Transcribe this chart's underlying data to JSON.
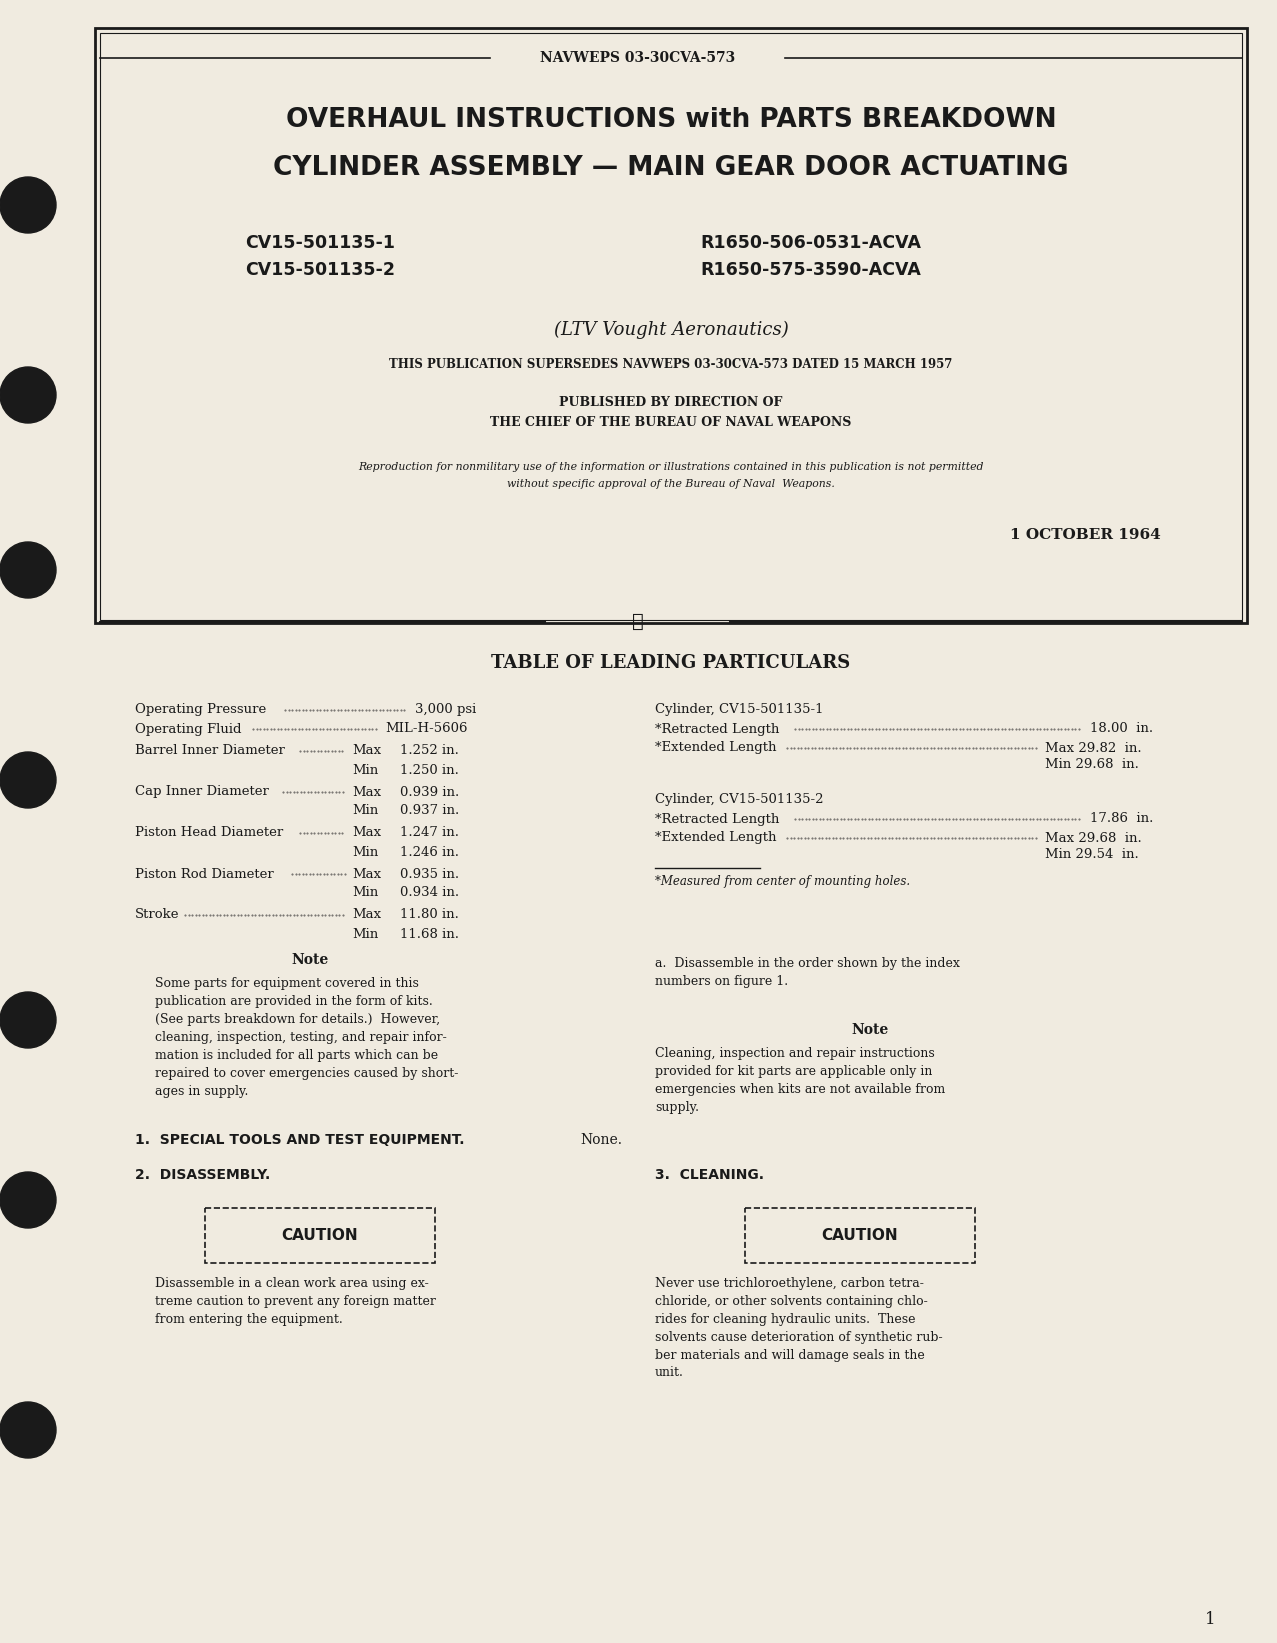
{
  "bg_color": "#f5f0e8",
  "page_bg": "#f0ebe0",
  "border_color": "#1a1a1a",
  "text_color": "#1a1a1a",
  "header_doc_num": "NAVWEPS 03-30CVA-573",
  "title_line1": "OVERHAUL INSTRUCTIONS with PARTS BREAKDOWN",
  "title_line2": "CYLINDER ASSEMBLY — MAIN GEAR DOOR ACTUATING",
  "part_num_left1": "CV15-501135-1",
  "part_num_left2": "CV15-501135-2",
  "part_num_right1": "R1650-506-0531-ACVA",
  "part_num_right2": "R1650-575-3590-ACVA",
  "company": "(LTV Vought Aeronautics)",
  "supersedes": "THIS PUBLICATION SUPERSEDES NAVWEPS 03-30CVA-573 DATED 15 MARCH 1957",
  "published_by1": "PUBLISHED BY DIRECTION OF",
  "published_by2": "THE CHIEF OF THE BUREAU OF NAVAL WEAPONS",
  "reproduction1": "Reproduction for nonmilitary use of the information or illustrations contained in this publication is not permitted",
  "reproduction2": "without specific approval of the Bureau of Naval  Weapons.",
  "date": "1 OCTOBER 1964",
  "table_title": "TABLE OF LEADING PARTICULARS",
  "footnote": "*Measured from center of mounting holes.",
  "note1_title": "Note",
  "note1_text": "Some parts for equipment covered in this\npublication are provided in the form of kits.\n(See parts breakdown for details.)  However,\ncleaning, inspection, testing, and repair infor-\nmation is included for all parts which can be\nrepaired to cover emergencies caused by short-\nages in supply.",
  "section1_title": "1.  SPECIAL TOOLS AND TEST EQUIPMENT.",
  "section1_text": "None.",
  "section2_title": "2.  DISASSEMBLY.",
  "caution1_title": "CAUTION",
  "caution1_text": "Disassemble in a clean work area using ex-\ntreme caution to prevent any foreign matter\nfrom entering the equipment.",
  "right_para_a": "a.  Disassemble in the order shown by the index\nnumbers on figure 1.",
  "note2_title": "Note",
  "note2_text": "Cleaning, inspection and repair instructions\nprovided for kit parts are applicable only in\nemergencies when kits are not available from\nsupply.",
  "section3_title": "3.  CLEANING.",
  "caution2_title": "CAUTION",
  "caution2_text": "Never use trichloroethylene, carbon tetra-\nchloride, or other solvents containing chlo-\nrides for cleaning hydraulic units.  These\nsolvents cause deterioration of synthetic rub-\nber materials and will damage seals in the\nunit.",
  "page_num": "1",
  "binder_holes_y": [
    205,
    395,
    570,
    780,
    1020,
    1200,
    1430
  ]
}
